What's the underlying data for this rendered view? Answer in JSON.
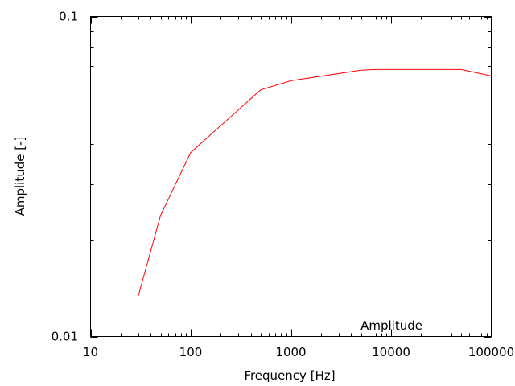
{
  "chart_data": {
    "type": "line",
    "title": "",
    "xlabel": "Frequency [Hz]",
    "ylabel": "Amplitude [-]",
    "xscale": "log",
    "yscale": "log",
    "xlim": [
      10,
      100000
    ],
    "ylim": [
      0.01,
      0.1
    ],
    "xticks": [
      10,
      100,
      1000,
      10000,
      100000
    ],
    "xtick_labels": [
      "10",
      "100",
      "1000",
      "10000",
      "100000"
    ],
    "yticks": [
      0.01,
      0.1
    ],
    "ytick_labels": [
      "0.01",
      "0.1"
    ],
    "grid": false,
    "legend_placement": "bottom-right",
    "series": [
      {
        "name": "Amplitude",
        "color": "#ff0000",
        "x": [
          30,
          50,
          100,
          500,
          1000,
          5000,
          7000,
          50000,
          100000
        ],
        "y": [
          0.0134,
          0.0239,
          0.0376,
          0.059,
          0.063,
          0.068,
          0.0683,
          0.0683,
          0.0652
        ]
      }
    ]
  }
}
